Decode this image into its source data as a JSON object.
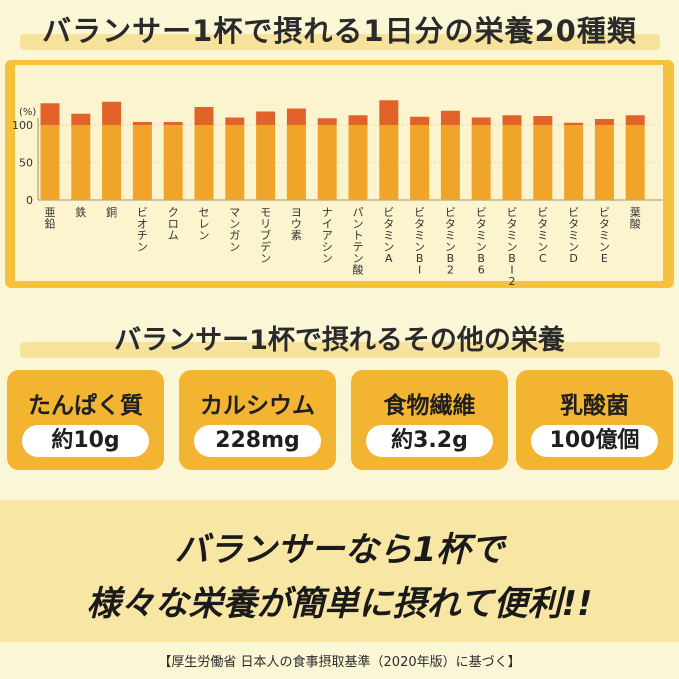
{
  "header": {
    "title": "バランサー1杯で摂れる1日分の栄養20種類"
  },
  "chart_data": {
    "type": "bar",
    "yunit": "(%)",
    "yticks": [
      0,
      50,
      100
    ],
    "ylim": [
      0,
      150
    ],
    "baseline_reference": 100,
    "categories": [
      "亜鉛",
      "鉄",
      "銅",
      "ビオチン",
      "クロム",
      "セレン",
      "マンガン",
      "モリブデン",
      "ヨウ素",
      "ナイアシン",
      "パントテン酸",
      "ビタミンA",
      "ビタミンB1",
      "ビタミンB2",
      "ビタミンB6",
      "ビタミンB12",
      "ビタミンC",
      "ビタミンD",
      "ビタミンE",
      "葉酸"
    ],
    "category_labels": [
      "亜鉛",
      "鉄",
      "銅",
      "ビオチン",
      "クロム",
      "セレン",
      "マンガン",
      "モリブデン",
      "ヨウ素",
      "ナイアシン",
      "パントテン酸",
      "ビタミンA",
      "ビタミンBI",
      "ビタミンB2",
      "ビタミンB6",
      "ビタミンBI2",
      "ビタミンC",
      "ビタミンD",
      "ビタミンE",
      "葉酸"
    ],
    "values": [
      129,
      115,
      131,
      104,
      104,
      124,
      110,
      118,
      122,
      109,
      113,
      133,
      111,
      119,
      110,
      113,
      112,
      103,
      108,
      113
    ]
  },
  "subheader": {
    "title": "バランサー1杯で摂れるその他の栄養"
  },
  "other_nutrients": [
    {
      "name": "たんぱく質",
      "amount": "約10g"
    },
    {
      "name": "カルシウム",
      "amount": "228mg"
    },
    {
      "name": "食物繊維",
      "amount": "約3.2g"
    },
    {
      "name": "乳酸菌",
      "amount": "100億個"
    }
  ],
  "tagline": {
    "line1": "バランサーなら1杯で",
    "line2": "様々な栄養が簡単に摂れて便利!!"
  },
  "footnote": "【厚生労働省 日本人の食事摂取基準（2020年版）に基づく】",
  "colors": {
    "panel": "#f6c23e",
    "bar_base": "#f0a42a",
    "bar_excess": "#e2632a",
    "band": "#f8e7a4",
    "card": "#f3b531"
  }
}
